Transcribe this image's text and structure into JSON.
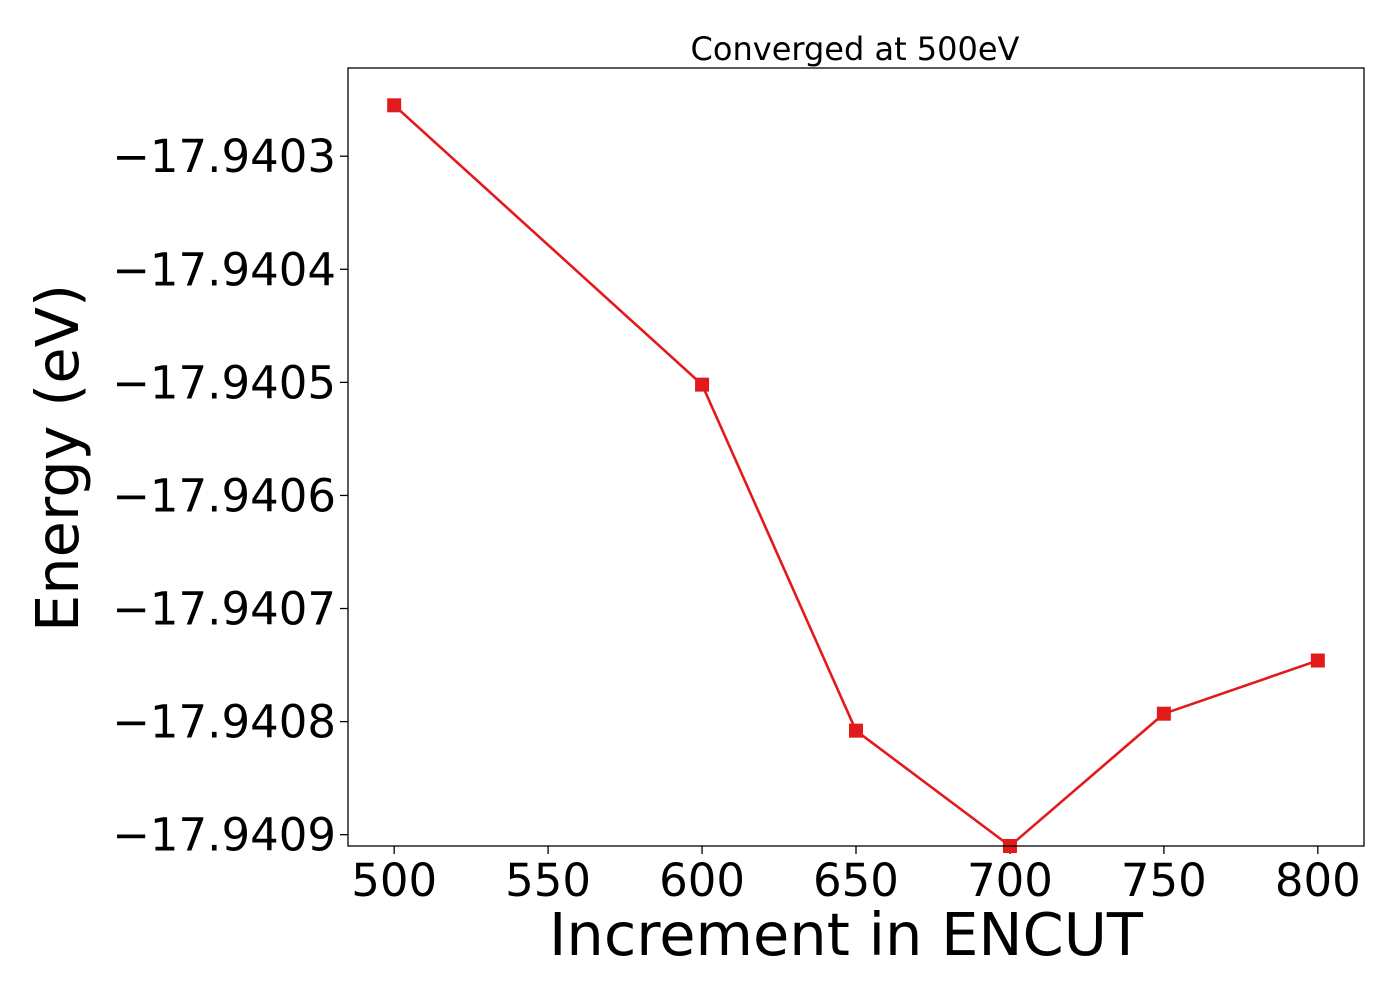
{
  "chart_data": {
    "type": "line",
    "title": "Converged at 500eV",
    "xlabel": "Increment in ENCUT",
    "ylabel": "Energy (eV)",
    "xlim": [
      485,
      815
    ],
    "ylim": [
      -17.94091,
      -17.940222
    ],
    "xticks": [
      500,
      550,
      600,
      650,
      700,
      750,
      800
    ],
    "xtick_labels": [
      "500",
      "550",
      "600",
      "650",
      "700",
      "750",
      "800"
    ],
    "yticks": [
      -17.9403,
      -17.9404,
      -17.9405,
      -17.9406,
      -17.9407,
      -17.9408,
      -17.9409
    ],
    "ytick_labels": [
      "−17.9403",
      "−17.9404",
      "−17.9405",
      "−17.9406",
      "−17.9407",
      "−17.9408",
      "−17.9409"
    ],
    "grid": false,
    "series": [
      {
        "color": "#e31a1c",
        "marker": "square",
        "x": [
          500,
          600,
          650,
          700,
          750,
          800
        ],
        "y": [
          -17.940255,
          -17.940502,
          -17.940808,
          -17.94091,
          -17.940793,
          -17.940746
        ]
      }
    ]
  }
}
